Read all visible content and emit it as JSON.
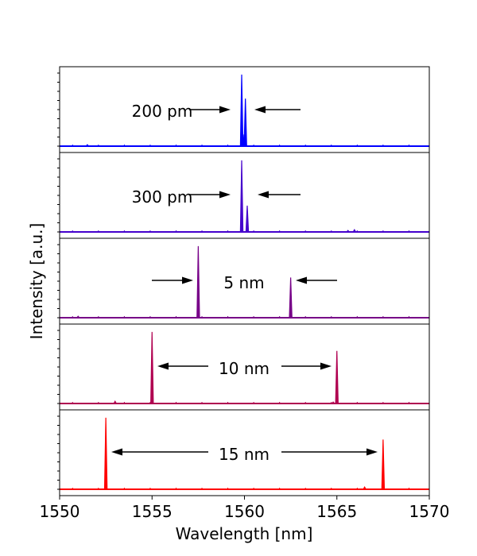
{
  "chart_data": {
    "type": "line",
    "title": "",
    "xlabel": "Wavelength [nm]",
    "ylabel": "Intensity [a.u.]",
    "xlim": [
      1550,
      1570
    ],
    "x_ticks": [
      "1550",
      "1555",
      "1560",
      "1565",
      "1570"
    ],
    "x_tick_values": [
      1550,
      1555,
      1560,
      1565,
      1570
    ],
    "grid": false,
    "legend": "none",
    "panels": [
      {
        "separation_label": "200 pm",
        "color": "#0000ff",
        "peaks": [
          {
            "x": 1559.85,
            "height": 0.98
          },
          {
            "x": 1560.05,
            "height": 0.65
          },
          {
            "x": 1559.93,
            "height": 0.16
          },
          {
            "x": 1551.5,
            "height": 0.02
          }
        ]
      },
      {
        "separation_label": "300 pm",
        "color": "#4400cc",
        "peaks": [
          {
            "x": 1559.85,
            "height": 0.98
          },
          {
            "x": 1560.15,
            "height": 0.36
          },
          {
            "x": 1565.95,
            "height": 0.03
          },
          {
            "x": 1565.6,
            "height": 0.02
          }
        ]
      },
      {
        "separation_label": "5 nm",
        "color": "#770088",
        "peaks": [
          {
            "x": 1557.5,
            "height": 0.98
          },
          {
            "x": 1562.5,
            "height": 0.55
          },
          {
            "x": 1551.0,
            "height": 0.02
          }
        ]
      },
      {
        "separation_label": "10 nm",
        "color": "#b00050",
        "peaks": [
          {
            "x": 1555.0,
            "height": 0.98
          },
          {
            "x": 1565.0,
            "height": 0.72
          },
          {
            "x": 1553.0,
            "height": 0.03
          },
          {
            "x": 1564.8,
            "height": 0.02
          }
        ]
      },
      {
        "separation_label": "15 nm",
        "color": "#ff0000",
        "peaks": [
          {
            "x": 1552.5,
            "height": 0.98
          },
          {
            "x": 1567.5,
            "height": 0.68
          },
          {
            "x": 1566.5,
            "height": 0.03
          }
        ]
      }
    ]
  }
}
